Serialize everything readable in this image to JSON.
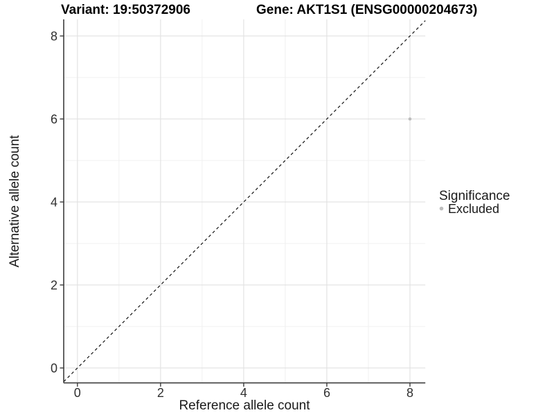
{
  "titles": {
    "variant": "Variant: 19:50372906",
    "gene": "Gene: AKT1S1 (ENSG00000204673)"
  },
  "chart_data": {
    "type": "scatter",
    "xlabel": "Reference allele count",
    "ylabel": "Alternative allele count",
    "x_range": [
      -0.33,
      8.37
    ],
    "y_range": [
      -0.36,
      8.4
    ],
    "x_ticks": [
      0,
      2,
      4,
      6,
      8
    ],
    "y_ticks": [
      0,
      2,
      4,
      6,
      8
    ],
    "x_minor": [
      1,
      3,
      5,
      7
    ],
    "y_minor": [
      1,
      3,
      5,
      7
    ],
    "grid": "major+minor on white background",
    "reference_line": {
      "type": "identity-y-equals-x",
      "style": "dashed",
      "color": "#111111"
    },
    "series": [
      {
        "name": "Excluded",
        "color": "#bdbdbd",
        "points": [
          [
            8,
            6
          ]
        ],
        "point_radius": 2.3
      }
    ],
    "legend": {
      "title": "Significance",
      "position": "right-middle",
      "items": [
        {
          "label": "Excluded",
          "color": "#bdbdbd"
        }
      ]
    },
    "colors": {
      "axis_line": "#3c3c3c",
      "major_grid": "#e3e3e3",
      "minor_grid": "#f0f0f0",
      "tick_mark": "#3c3c3c"
    }
  }
}
